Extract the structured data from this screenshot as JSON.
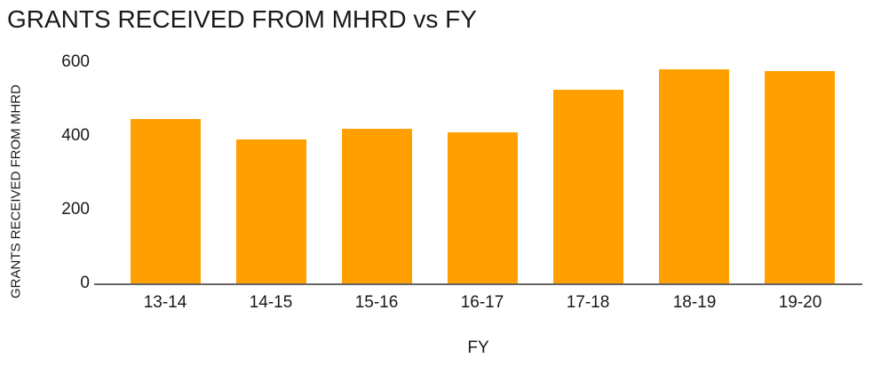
{
  "chart_data": {
    "type": "bar",
    "title": "GRANTS RECEIVED FROM MHRD vs FY",
    "categories": [
      "13-14",
      "14-15",
      "15-16",
      "16-17",
      "17-18",
      "18-19",
      "19-20"
    ],
    "values": [
      445,
      390,
      420,
      410,
      525,
      580,
      575
    ],
    "xlabel": "FY",
    "ylabel": "GRANTS RECEIVED FROM MHRD",
    "ylim": [
      0,
      600
    ],
    "yticks": [
      0,
      200,
      400,
      600
    ],
    "grid": false,
    "legend": "none",
    "bar_color": "#FFA000",
    "axis_line_color": "#666666",
    "text_color": "#1a1a1a",
    "background_color": "#FFFFFF"
  }
}
